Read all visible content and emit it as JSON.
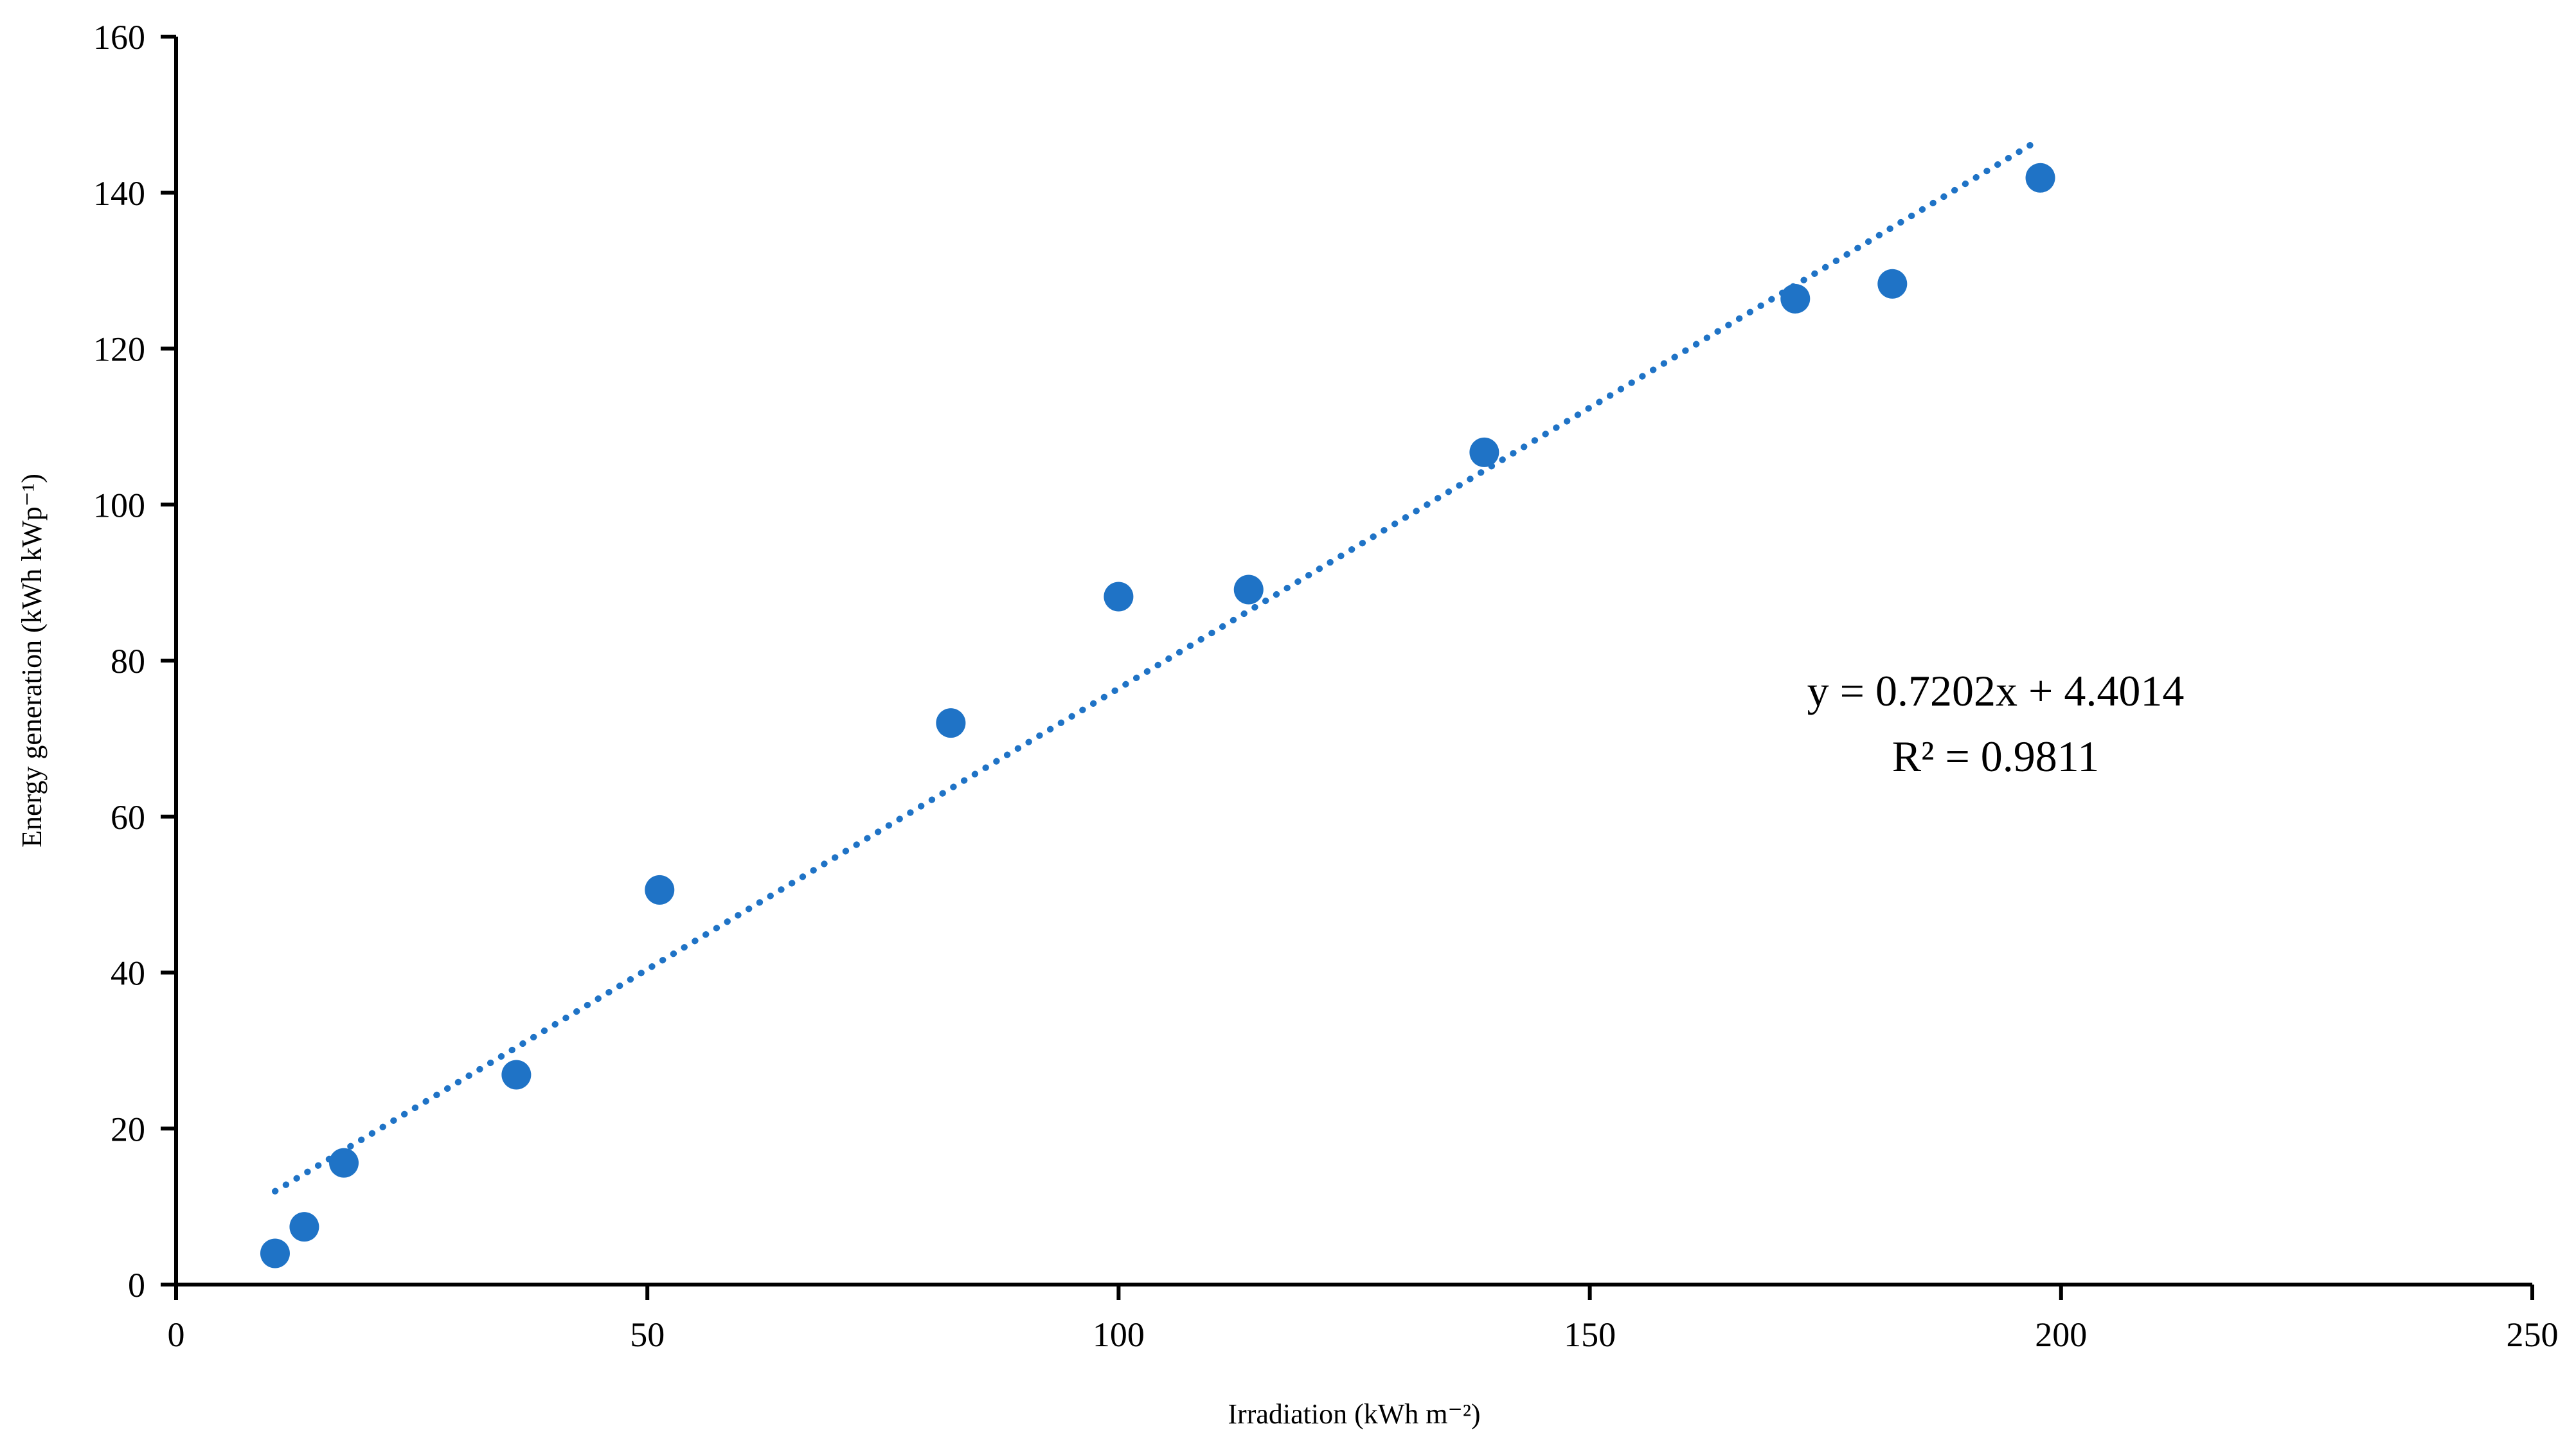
{
  "chart_data": {
    "type": "scatter",
    "xlabel": "Irradiation (kWh m⁻²)",
    "ylabel": "Energy generation (kWh kWp⁻¹)",
    "xlim": [
      0,
      250
    ],
    "ylim": [
      0,
      160
    ],
    "xticks": [
      0,
      50,
      100,
      150,
      200,
      250
    ],
    "yticks": [
      0,
      20,
      40,
      60,
      80,
      100,
      120,
      140,
      160
    ],
    "grid": false,
    "legend": "none",
    "series": [
      {
        "x": [
          10.5,
          13.6,
          17.8,
          36.1,
          51.3,
          82.2,
          100.0,
          113.8,
          138.8,
          171.8,
          182.1,
          197.8
        ],
        "y": [
          4.0,
          7.4,
          15.6,
          26.9,
          50.6,
          72.0,
          88.2,
          89.1,
          106.7,
          126.4,
          128.3,
          141.9
        ]
      }
    ],
    "trendline": {
      "type": "linear",
      "slope": 0.7202,
      "intercept": 4.4014,
      "x_range": [
        10.5,
        197.8
      ],
      "style": "dotted"
    },
    "annotations": [
      "y = 0.7202x + 4.4014",
      "R² = 0.9811"
    ],
    "colors": {
      "series": "#1f73c6",
      "axis": "#000000"
    }
  }
}
